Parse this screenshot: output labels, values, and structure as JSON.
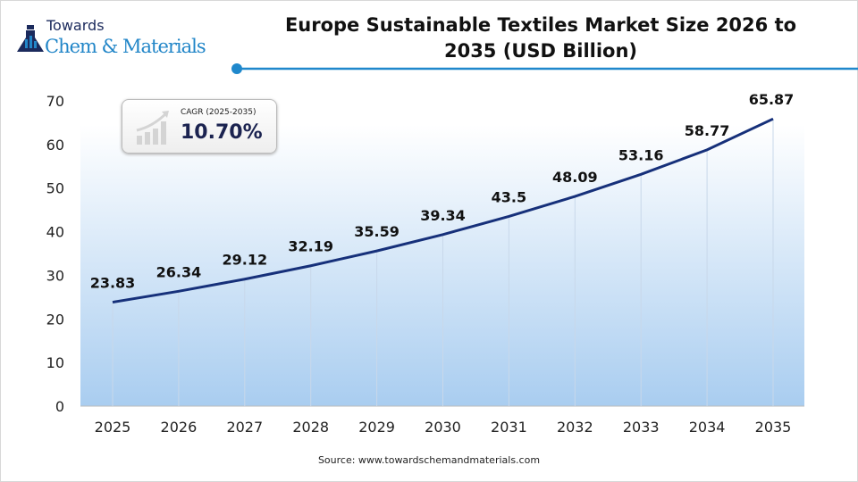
{
  "logo": {
    "line1": "Towards",
    "line2": "Chem & Materials"
  },
  "title": "Europe Sustainable Textiles Market Size 2026 to 2035 (USD Billion)",
  "cagr": {
    "label": "CAGR (2025-2035)",
    "value": "10.70%"
  },
  "source": "Source: www.towardschemandmaterials.com",
  "colors": {
    "line": "#16307a",
    "accent": "#1f88cc",
    "fill": "#a9cdf0"
  },
  "chart_data": {
    "type": "line",
    "categories": [
      "2025",
      "2026",
      "2027",
      "2028",
      "2029",
      "2030",
      "2031",
      "2032",
      "2033",
      "2034",
      "2035"
    ],
    "values": [
      23.83,
      26.34,
      29.12,
      32.19,
      35.59,
      39.34,
      43.5,
      48.09,
      53.16,
      58.77,
      65.87
    ],
    "labels": [
      "23.83",
      "26.34",
      "29.12",
      "32.19",
      "35.59",
      "39.34",
      "43.5",
      "48.09",
      "53.16",
      "58.77",
      "65.87"
    ],
    "ylim": [
      0,
      70
    ],
    "yticks": [
      0,
      10,
      20,
      30,
      40,
      50,
      60,
      70
    ],
    "grid": "vertical lines at categories",
    "legend": "none"
  }
}
